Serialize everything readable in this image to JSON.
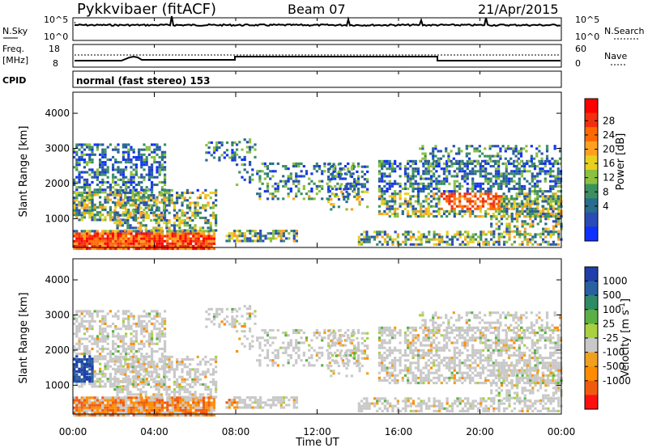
{
  "header": {
    "station": "Pykkvibaer (fitACF)",
    "beam": "Beam 07",
    "date": "21/Apr/2015"
  },
  "noise_panel": {
    "left_label": "N.Sky",
    "right_label": "N.Search",
    "left_ticks": [
      "10^5",
      "10^0"
    ],
    "right_ticks": [
      "10^5",
      "10^0"
    ]
  },
  "freq_panel": {
    "left_label_1": "Freq.",
    "left_label_2": "[MHz]",
    "right_label": "Nave",
    "left_ticks": [
      "18",
      "8"
    ],
    "right_ticks": [
      "60",
      "0"
    ]
  },
  "cpid": {
    "label": "CPID",
    "mode": "normal (fast stereo) 153"
  },
  "chart_data": [
    {
      "type": "heatmap",
      "name": "power",
      "ylabel": "Slant Range [km]",
      "ylim": [
        180,
        4600
      ],
      "yticks": [
        "1000",
        "2000",
        "3000",
        "4000"
      ],
      "colorbar": {
        "label": "Power [dB]",
        "ticks": [
          "28",
          "24",
          "20",
          "16",
          "12",
          "8",
          "4"
        ],
        "colors": [
          "#ff0000",
          "#f03010",
          "#ff6a00",
          "#ffa020",
          "#e8d020",
          "#8cc040",
          "#3c9060",
          "#2a6c8c",
          "#2a4cb4",
          "#1030ff"
        ]
      }
    },
    {
      "type": "heatmap",
      "name": "velocity",
      "xlabel": "Time UT",
      "ylabel": "Slant Range [km]",
      "ylim": [
        180,
        4600
      ],
      "xticks": [
        "00:00",
        "04:00",
        "08:00",
        "12:00",
        "16:00",
        "20:00",
        "00:00"
      ],
      "yticks": [
        "1000",
        "2000",
        "3000",
        "4000"
      ],
      "colorbar": {
        "label": "Velocity [m s^-1]",
        "ticks": [
          "1000",
          "500",
          "100",
          "25",
          "-25",
          "-100",
          "-500",
          "-1000"
        ],
        "colors": [
          "#1f3ea8",
          "#2a60a0",
          "#2f8a66",
          "#5ab046",
          "#a8d040",
          "#c8c8c8",
          "#f0a020",
          "#ff8c00",
          "#f05a10",
          "#ff1010"
        ]
      }
    }
  ]
}
